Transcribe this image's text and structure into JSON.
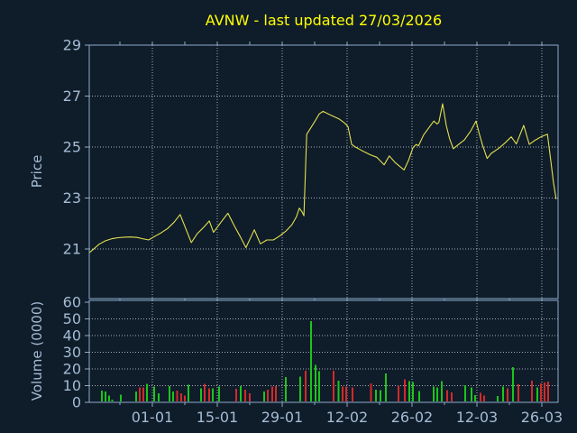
{
  "title": "AVNW - last updated 27/03/2026",
  "colors": {
    "background": "#0f1c2a",
    "title": "#ffff00",
    "axis_text": "#a4bcd4",
    "frame": "#8cacca",
    "grid": "#c4c9ce",
    "price_line": "#e3e14e",
    "volume_up": "#1dc41d",
    "volume_down": "#d32a2a"
  },
  "x_axis": {
    "tick_labels": [
      "01-01",
      "15-01",
      "29-01",
      "12-02",
      "26-02",
      "12-03",
      "26-03"
    ],
    "tick_days": [
      0,
      14,
      28,
      42,
      56,
      70,
      84
    ],
    "minor_tick_days": [
      -7,
      7,
      21,
      35,
      49,
      63,
      77
    ],
    "domain_days": [
      -13.6,
      87.5
    ],
    "x_unit": "days since 01-01"
  },
  "price_panel": {
    "ylabel": "Price",
    "tick_values": [
      21,
      23,
      25,
      27,
      29
    ],
    "grid_values": [
      21,
      23,
      25,
      27
    ],
    "domain": [
      19.05,
      29.0
    ]
  },
  "volume_panel": {
    "ylabel": "Volume (0000)",
    "tick_values": [
      0,
      10,
      20,
      30,
      40,
      50,
      60
    ],
    "grid_values": [
      10,
      20,
      30,
      40,
      50
    ],
    "domain": [
      0,
      61
    ]
  },
  "chart_data": [
    {
      "type": "line",
      "name": "price",
      "x_unit": "days since 01-01",
      "y_unit": "price",
      "points": [
        [
          -13.6,
          20.85
        ],
        [
          -12.6,
          21.0
        ],
        [
          -11.5,
          21.18
        ],
        [
          -10.1,
          21.32
        ],
        [
          -8.7,
          21.4
        ],
        [
          -7.4,
          21.44
        ],
        [
          -6.0,
          21.46
        ],
        [
          -4.7,
          21.47
        ],
        [
          -3.3,
          21.45
        ],
        [
          -2.1,
          21.4
        ],
        [
          -0.8,
          21.35
        ],
        [
          0.6,
          21.5
        ],
        [
          1.9,
          21.63
        ],
        [
          3.3,
          21.8
        ],
        [
          4.7,
          22.05
        ],
        [
          6.0,
          22.35
        ],
        [
          7.2,
          21.8
        ],
        [
          8.4,
          21.25
        ],
        [
          9.7,
          21.6
        ],
        [
          11.1,
          21.85
        ],
        [
          12.3,
          22.1
        ],
        [
          13.2,
          21.65
        ],
        [
          14.8,
          22.05
        ],
        [
          16.3,
          22.4
        ],
        [
          17.7,
          21.9
        ],
        [
          18.9,
          21.5
        ],
        [
          20.2,
          21.05
        ],
        [
          22.0,
          21.75
        ],
        [
          23.3,
          21.2
        ],
        [
          24.7,
          21.35
        ],
        [
          26.1,
          21.35
        ],
        [
          27.4,
          21.5
        ],
        [
          28.8,
          21.7
        ],
        [
          30.1,
          21.95
        ],
        [
          31.1,
          22.27
        ],
        [
          31.7,
          22.6
        ],
        [
          32.3,
          22.45
        ],
        [
          32.7,
          22.3
        ],
        [
          33.3,
          25.5
        ],
        [
          34.0,
          25.7
        ],
        [
          35.2,
          26.05
        ],
        [
          36.0,
          26.3
        ],
        [
          36.8,
          26.4
        ],
        [
          38.5,
          26.25
        ],
        [
          40.3,
          26.1
        ],
        [
          41.4,
          25.95
        ],
        [
          42.2,
          25.8
        ],
        [
          43.0,
          25.1
        ],
        [
          43.8,
          25.0
        ],
        [
          45.3,
          24.85
        ],
        [
          46.9,
          24.7
        ],
        [
          48.4,
          24.6
        ],
        [
          50.0,
          24.3
        ],
        [
          51.1,
          24.65
        ],
        [
          52.3,
          24.4
        ],
        [
          54.3,
          24.1
        ],
        [
          55.3,
          24.5
        ],
        [
          56.2,
          24.97
        ],
        [
          56.9,
          25.1
        ],
        [
          57.4,
          25.05
        ],
        [
          58.5,
          25.47
        ],
        [
          59.9,
          25.82
        ],
        [
          60.7,
          26.02
        ],
        [
          61.4,
          25.9
        ],
        [
          61.8,
          25.97
        ],
        [
          62.6,
          26.7
        ],
        [
          63.4,
          25.84
        ],
        [
          64.1,
          25.34
        ],
        [
          64.9,
          24.93
        ],
        [
          65.9,
          25.08
        ],
        [
          67.3,
          25.28
        ],
        [
          68.6,
          25.61
        ],
        [
          69.8,
          26.02
        ],
        [
          70.6,
          25.46
        ],
        [
          71.2,
          25.08
        ],
        [
          72.2,
          24.55
        ],
        [
          73.1,
          24.75
        ],
        [
          74.7,
          24.95
        ],
        [
          76.0,
          25.15
        ],
        [
          77.4,
          25.4
        ],
        [
          78.5,
          25.12
        ],
        [
          80.1,
          25.85
        ],
        [
          81.3,
          25.1
        ],
        [
          82.4,
          25.25
        ],
        [
          83.8,
          25.4
        ],
        [
          85.2,
          25.5
        ],
        [
          85.9,
          24.5
        ],
        [
          86.5,
          23.6
        ],
        [
          87.1,
          22.95
        ]
      ]
    },
    {
      "type": "bar",
      "name": "volume",
      "x_unit": "days since 01-01",
      "y_unit": "0000 shares",
      "bars": [
        [
          -10.9,
          7.0,
          "up"
        ],
        [
          -10.1,
          6.4,
          "up"
        ],
        [
          -9.3,
          4.0,
          "up"
        ],
        [
          -8.6,
          1.5,
          "up"
        ],
        [
          -6.8,
          4.6,
          "up"
        ],
        [
          -3.5,
          6.4,
          "up"
        ],
        [
          -2.7,
          9.0,
          "down"
        ],
        [
          -1.9,
          9.0,
          "down"
        ],
        [
          -1.2,
          11.2,
          "up"
        ],
        [
          0.4,
          9.4,
          "up"
        ],
        [
          1.4,
          5.4,
          "up"
        ],
        [
          3.7,
          9.6,
          "up"
        ],
        [
          4.5,
          6.4,
          "up"
        ],
        [
          5.4,
          7.0,
          "down"
        ],
        [
          6.2,
          5.4,
          "down"
        ],
        [
          7.0,
          4.0,
          "down"
        ],
        [
          7.8,
          10.4,
          "up"
        ],
        [
          10.5,
          8.4,
          "up"
        ],
        [
          11.3,
          11.0,
          "down"
        ],
        [
          12.3,
          8.4,
          "down"
        ],
        [
          13.0,
          8.4,
          "up"
        ],
        [
          14.4,
          9.4,
          "up"
        ],
        [
          18.1,
          8.0,
          "down"
        ],
        [
          19.1,
          9.6,
          "up"
        ],
        [
          20.0,
          7.6,
          "down"
        ],
        [
          21.0,
          5.4,
          "down"
        ],
        [
          24.1,
          6.4,
          "up"
        ],
        [
          24.9,
          7.6,
          "down"
        ],
        [
          25.9,
          9.4,
          "down"
        ],
        [
          26.6,
          9.6,
          "down"
        ],
        [
          28.8,
          15.0,
          "up"
        ],
        [
          31.9,
          15.5,
          "up"
        ],
        [
          33.1,
          19.0,
          "down"
        ],
        [
          34.2,
          48.5,
          "up"
        ],
        [
          35.2,
          22.5,
          "up"
        ],
        [
          36.0,
          18.5,
          "up"
        ],
        [
          39.1,
          19.0,
          "down"
        ],
        [
          40.2,
          13.0,
          "up"
        ],
        [
          41.0,
          9.5,
          "down"
        ],
        [
          41.8,
          9.5,
          "down"
        ],
        [
          43.2,
          9.0,
          "down"
        ],
        [
          47.2,
          11.3,
          "down"
        ],
        [
          48.2,
          7.6,
          "up"
        ],
        [
          49.2,
          7.2,
          "up"
        ],
        [
          50.4,
          17.3,
          "up"
        ],
        [
          53.1,
          10.0,
          "down"
        ],
        [
          54.4,
          13.7,
          "down"
        ],
        [
          55.4,
          12.6,
          "up"
        ],
        [
          56.2,
          12.2,
          "up"
        ],
        [
          57.6,
          6.7,
          "up"
        ],
        [
          60.7,
          9.5,
          "up"
        ],
        [
          61.4,
          9.0,
          "up"
        ],
        [
          62.4,
          12.7,
          "up"
        ],
        [
          63.6,
          7.2,
          "down"
        ],
        [
          64.6,
          6.0,
          "down"
        ],
        [
          67.5,
          10.3,
          "up"
        ],
        [
          68.8,
          8.8,
          "up"
        ],
        [
          69.6,
          4.3,
          "up"
        ],
        [
          70.8,
          5.8,
          "down"
        ],
        [
          71.6,
          4.0,
          "down"
        ],
        [
          74.5,
          3.7,
          "up"
        ],
        [
          75.6,
          9.5,
          "up"
        ],
        [
          76.6,
          8.5,
          "down"
        ],
        [
          77.8,
          21.0,
          "up"
        ],
        [
          78.9,
          10.7,
          "down"
        ],
        [
          81.9,
          13.0,
          "down"
        ],
        [
          83.0,
          9.0,
          "up"
        ],
        [
          83.8,
          11.3,
          "down"
        ],
        [
          84.6,
          12.0,
          "down"
        ],
        [
          85.4,
          12.5,
          "down"
        ]
      ]
    }
  ]
}
